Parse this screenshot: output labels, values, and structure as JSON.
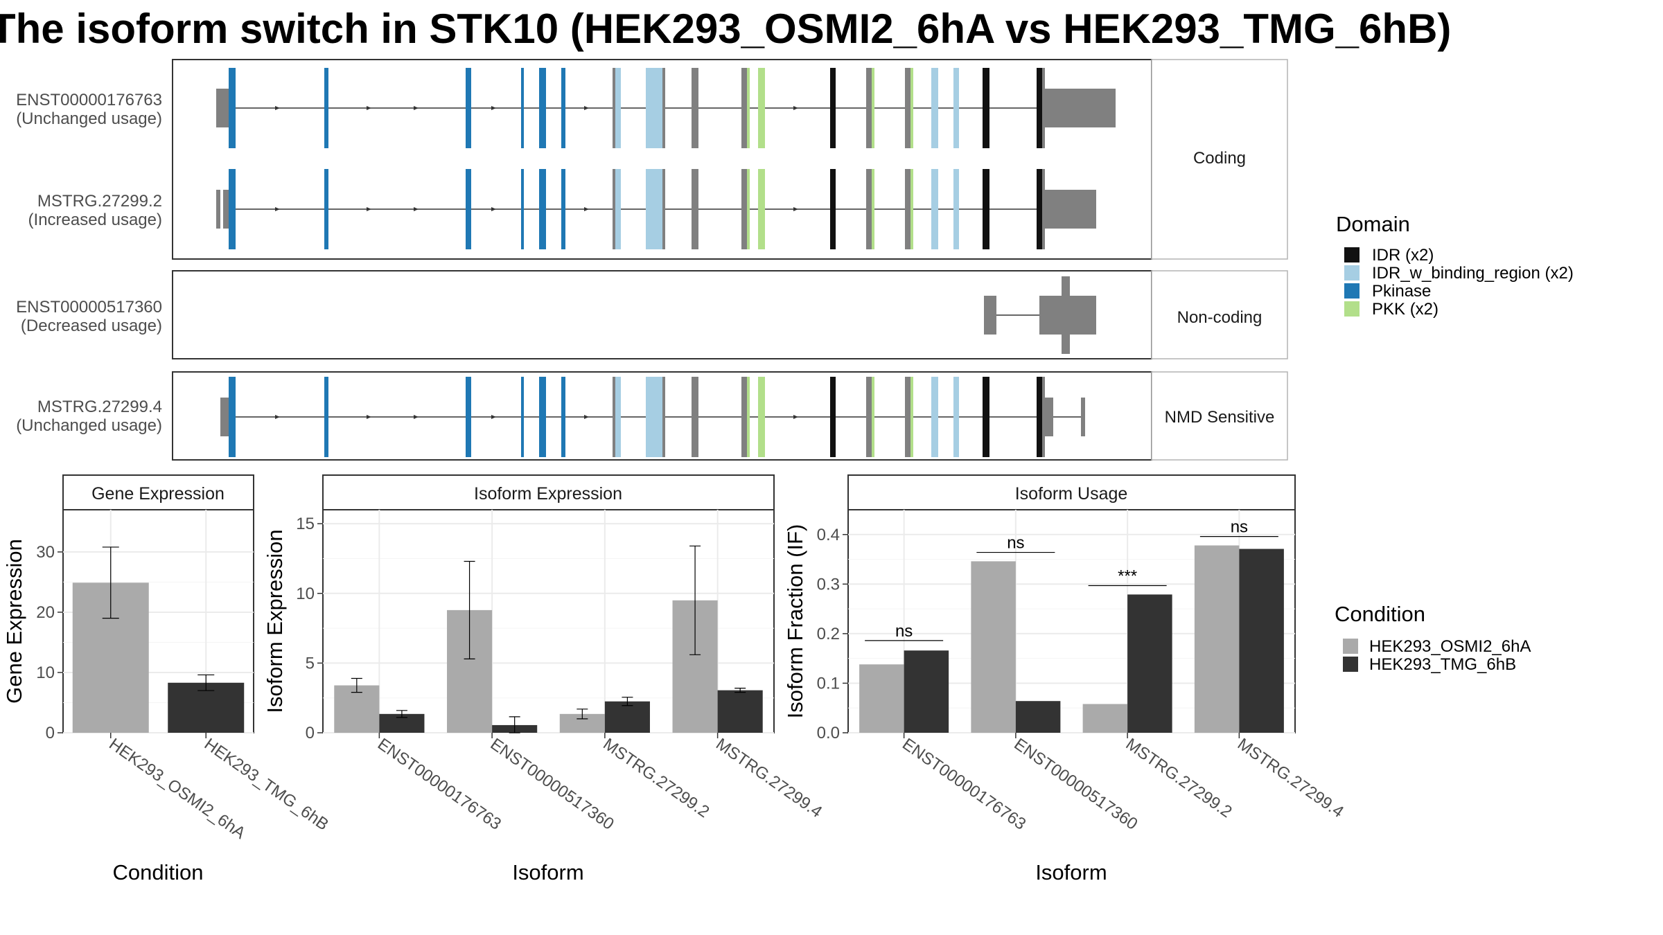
{
  "title": "The isoform switch in STK10 (HEK293_OSMI2_6hA vs HEK293_TMG_6hB)",
  "colors": {
    "IDR": "#111111",
    "IDR_w_binding_region": "#a6cee3",
    "Pkinase": "#1f78b4",
    "PKK": "#b2df8a",
    "exon": "#808080",
    "cond1": "#aaaaaa",
    "cond2": "#333333"
  },
  "structure": {
    "facets": [
      {
        "label": "Coding",
        "isoforms": [
          {
            "id": "ENST00000176763",
            "usage": "(Unchanged usage)"
          },
          {
            "id": "MSTRG.27299.2",
            "usage": "(Increased usage)"
          }
        ]
      },
      {
        "label": "Non-coding",
        "isoforms": [
          {
            "id": "ENST00000517360",
            "usage": "(Decreased usage)"
          }
        ]
      },
      {
        "label": "NMD Sensitive",
        "isoforms": [
          {
            "id": "MSTRG.27299.4",
            "usage": "(Unchanged usage)"
          }
        ]
      }
    ]
  },
  "legend_domain": {
    "title": "Domain",
    "items": [
      {
        "label": "IDR (x2)",
        "key": "IDR"
      },
      {
        "label": "IDR_w_binding_region (x2)",
        "key": "IDR_w_binding_region"
      },
      {
        "label": "Pkinase",
        "key": "Pkinase"
      },
      {
        "label": "PKK (x2)",
        "key": "PKK"
      }
    ]
  },
  "legend_condition": {
    "title": "Condition",
    "items": [
      {
        "label": "HEK293_OSMI2_6hA",
        "key": "cond1"
      },
      {
        "label": "HEK293_TMG_6hB",
        "key": "cond2"
      }
    ]
  },
  "chart_data": [
    {
      "type": "bar",
      "title": "Gene Expression",
      "xlabel": "Condition",
      "ylabel": "Gene Expression",
      "categories": [
        "HEK293_OSMI2_6hA",
        "HEK293_TMG_6hB"
      ],
      "values": [
        24.9,
        8.3
      ],
      "error_low": [
        19.0,
        7.0
      ],
      "error_high": [
        30.8,
        9.6
      ],
      "ylim": [
        0,
        37
      ],
      "yticks": [
        0,
        10,
        20,
        30
      ]
    },
    {
      "type": "bar",
      "title": "Isoform Expression",
      "xlabel": "Isoform",
      "ylabel": "Isoform Expression",
      "categories": [
        "ENST00000176763",
        "ENST00000517360",
        "MSTRG.27299.2",
        "MSTRG.27299.4"
      ],
      "series": [
        {
          "name": "HEK293_OSMI2_6hA",
          "values": [
            3.4,
            8.8,
            1.35,
            9.5
          ],
          "error_low": [
            2.9,
            5.3,
            1.0,
            5.6
          ],
          "error_high": [
            3.9,
            12.3,
            1.7,
            13.4
          ]
        },
        {
          "name": "HEK293_TMG_6hB",
          "values": [
            1.35,
            0.55,
            2.25,
            3.05
          ],
          "error_low": [
            1.1,
            0.0,
            1.95,
            2.9
          ],
          "error_high": [
            1.6,
            1.15,
            2.55,
            3.2
          ]
        }
      ],
      "ylim": [
        0,
        16
      ],
      "yticks": [
        0,
        5,
        10,
        15
      ]
    },
    {
      "type": "bar",
      "title": "Isoform Usage",
      "xlabel": "Isoform",
      "ylabel": "Isoform Fraction (IF)",
      "categories": [
        "ENST00000176763",
        "ENST00000517360",
        "MSTRG.27299.2",
        "MSTRG.27299.4"
      ],
      "series": [
        {
          "name": "HEK293_OSMI2_6hA",
          "values": [
            0.138,
            0.346,
            0.058,
            0.378
          ]
        },
        {
          "name": "HEK293_TMG_6hB",
          "values": [
            0.166,
            0.064,
            0.279,
            0.371
          ]
        }
      ],
      "significance": [
        "ns",
        "ns",
        "***",
        "ns"
      ],
      "sig_levels": [
        0.186,
        0.364,
        0.297,
        0.396
      ],
      "ylim": [
        0,
        0.45
      ],
      "yticks": [
        0.0,
        0.1,
        0.2,
        0.3,
        0.4
      ],
      "ytick_labels": [
        "0.0",
        "0.1",
        "0.2",
        "0.3",
        "0.4"
      ]
    }
  ]
}
